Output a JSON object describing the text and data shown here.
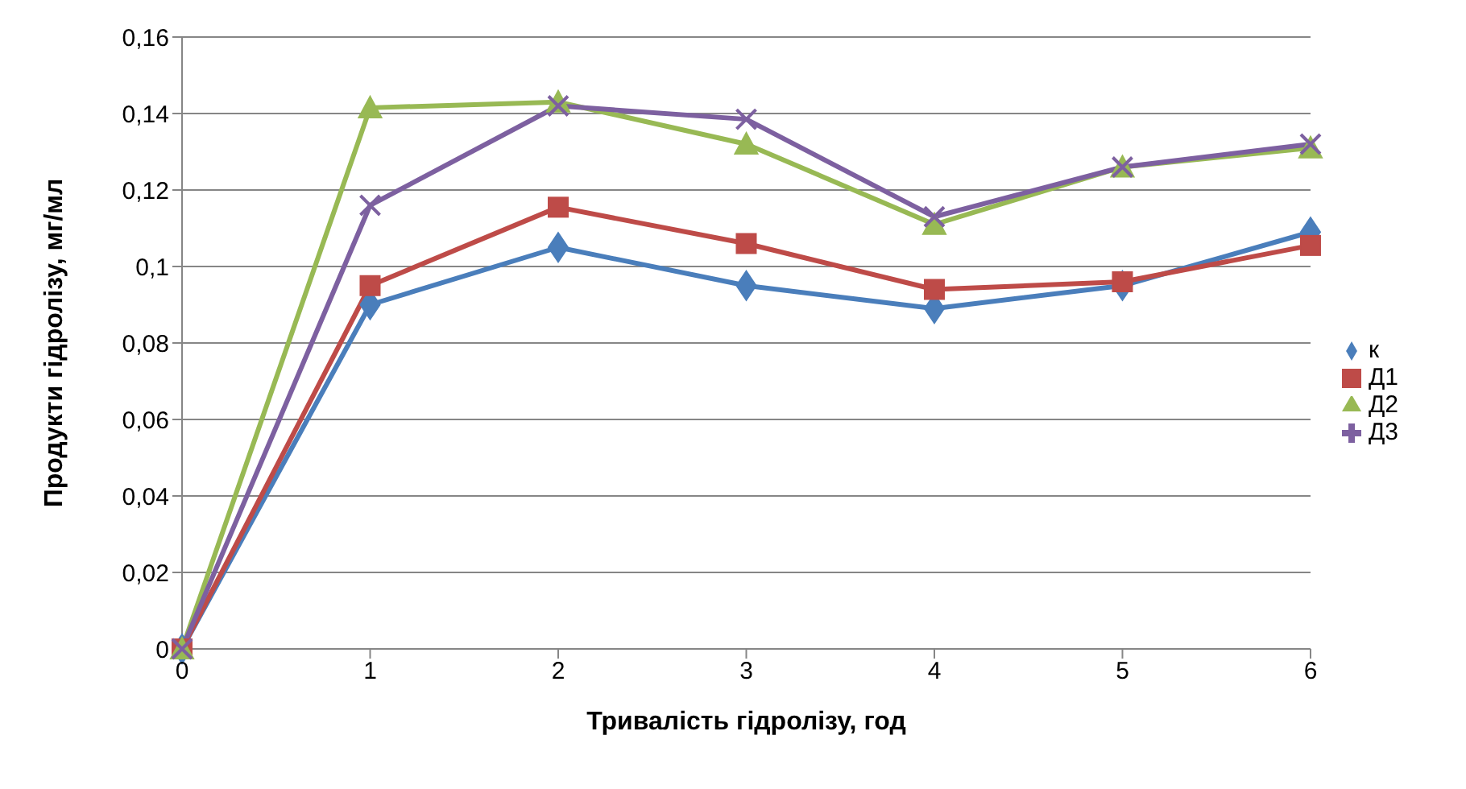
{
  "chart_data": {
    "type": "line",
    "xlabel": "Тривалість гідролізу, год",
    "ylabel": "Продукти гідролізу, мг/мл",
    "x": [
      0,
      1,
      2,
      3,
      4,
      5,
      6
    ],
    "series": [
      {
        "name": "к",
        "color": "#4a7ebb",
        "marker": "diamond",
        "values": [
          0,
          0.09,
          0.105,
          0.095,
          0.089,
          0.095,
          0.109
        ]
      },
      {
        "name": "Д1",
        "color": "#be4b48",
        "marker": "square",
        "values": [
          0,
          0.095,
          0.1155,
          0.106,
          0.094,
          0.096,
          0.1055
        ]
      },
      {
        "name": "Д2",
        "color": "#98b954",
        "marker": "triangle",
        "values": [
          0,
          0.1415,
          0.143,
          0.132,
          0.111,
          0.126,
          0.131
        ]
      },
      {
        "name": "Д3",
        "color": "#7d60a0",
        "marker": "cross",
        "values": [
          0,
          0.116,
          0.142,
          0.1385,
          0.113,
          0.126,
          0.132
        ]
      }
    ],
    "xlim": [
      0,
      6
    ],
    "xticks": [
      0,
      1,
      2,
      3,
      4,
      5,
      6
    ],
    "ylim": [
      0,
      0.16
    ],
    "yticks": [
      0,
      {
        "value": 0.02,
        "label": "0,02"
      },
      {
        "value": 0.04,
        "label": "0,04"
      },
      {
        "value": 0.06,
        "label": "0,06"
      },
      {
        "value": 0.08,
        "label": "0,08"
      },
      {
        "value": 0.1,
        "label": "0,1"
      },
      {
        "value": 0.12,
        "label": "0,12"
      },
      {
        "value": 0.14,
        "label": "0,14"
      },
      {
        "value": 0.16,
        "label": "0,16"
      }
    ],
    "grid": "y",
    "legend": "right",
    "line_style": "solid"
  }
}
